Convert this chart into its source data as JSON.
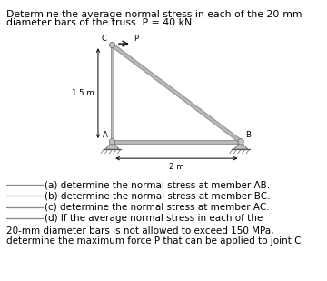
{
  "title_line1": "Determine the average normal stress in each of the 20-mm",
  "title_line2": "diameter bars of the truss. P = 40 kN.",
  "bg_color": "#ffffff",
  "bar_color": "#b8b8b8",
  "bar_edge_color": "#888888",
  "bar_width": 0.055,
  "truss": {
    "A": [
      0.0,
      0.0
    ],
    "B": [
      2.0,
      0.0
    ],
    "C": [
      0.0,
      1.5
    ]
  },
  "dim_label_15": "1.5 m",
  "dim_label_2": "2 m",
  "questions": [
    "(a) determine the normal stress at member AB.",
    "(b) determine the normal stress at member BC.",
    "(c) determine the normal stress at member AC.",
    "(d) If the average normal stress in each of the"
  ],
  "footer_line1": "20-mm diameter bars is not allowed to exceed 150 MPa,",
  "footer_line2": "determine the maximum force P that can be applied to joint C",
  "line_color": "#888888",
  "text_color": "#000000",
  "title_fontsize": 7.8,
  "body_fontsize": 7.5,
  "small_fontsize": 6.2
}
